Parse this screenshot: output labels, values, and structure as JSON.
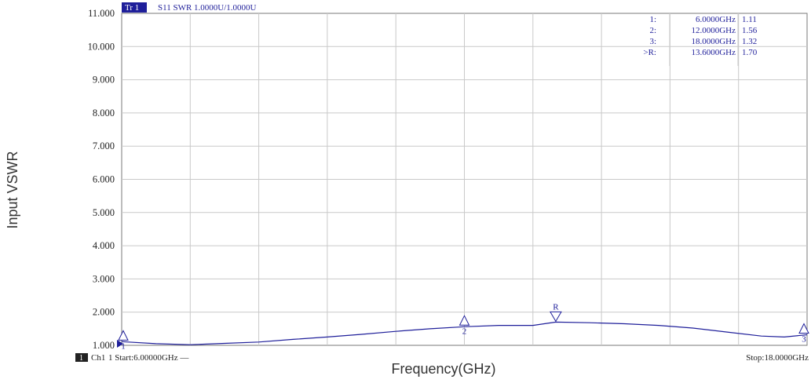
{
  "colors": {
    "trace": "#1f1f9a",
    "grid": "#c9c9c9",
    "frame": "#7a7a7a",
    "tr_badge_bg": "#1f1f9a",
    "tr_badge_fg": "#ffffff",
    "ch_badge_bg": "#222222"
  },
  "header": {
    "trace_badge": "Tr 1",
    "trace_info": "S11  SWR 1.0000U/1.0000U"
  },
  "footer": {
    "channel_badge": "1",
    "channel_label": "Ch1",
    "start_label": "1 Start:6.00000GHz  —",
    "stop_label": "Stop:18.0000GHz"
  },
  "markers": [
    {
      "id": "1:",
      "freq": "6.0000GHz",
      "value": "1.11",
      "symbol": "1",
      "direction": "up"
    },
    {
      "id": "2:",
      "freq": "12.0000GHz",
      "value": "1.56",
      "symbol": "2",
      "direction": "up"
    },
    {
      "id": "3:",
      "freq": "18.0000GHz",
      "value": "1.32",
      "symbol": "3",
      "direction": "up"
    },
    {
      "id": ">R:",
      "freq": "13.6000GHz",
      "value": "1.70",
      "symbol": "R",
      "direction": "down"
    }
  ],
  "chart_data": {
    "type": "line",
    "xlabel": "Frequency(GHz)",
    "ylabel": "Input VSWR",
    "xlim": [
      6,
      18
    ],
    "ylim": [
      1,
      11
    ],
    "grid": true,
    "x_divisions": 10,
    "yticks": [
      "1.000",
      "2.000",
      "3.000",
      "4.000",
      "5.000",
      "6.000",
      "7.000",
      "8.000",
      "9.000",
      "10.000",
      "11.000"
    ],
    "series": [
      {
        "x": [
          6.0,
          6.6,
          7.2,
          7.8,
          8.4,
          9.0,
          9.6,
          10.2,
          10.8,
          11.4,
          12.0,
          12.6,
          13.2,
          13.6,
          14.2,
          14.8,
          15.4,
          16.0,
          16.6,
          17.2,
          17.6,
          18.0
        ],
        "values": [
          1.11,
          1.05,
          1.02,
          1.06,
          1.1,
          1.18,
          1.25,
          1.33,
          1.42,
          1.5,
          1.56,
          1.6,
          1.6,
          1.7,
          1.68,
          1.65,
          1.6,
          1.52,
          1.4,
          1.28,
          1.25,
          1.32
        ]
      }
    ]
  }
}
